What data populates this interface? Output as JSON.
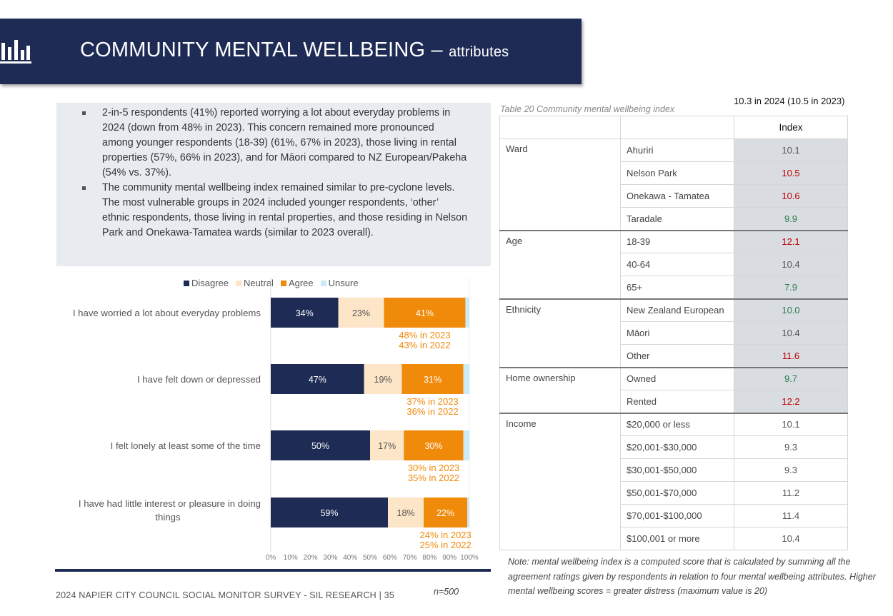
{
  "header": {
    "title": "COMMUNITY MENTAL WELLBEING",
    "dash": "–",
    "subtitle": "attributes",
    "icon": "bar-chart-icon"
  },
  "summary": {
    "bullets": [
      "2-in-5 respondents (41%) reported worrying a lot about everyday problems in 2024 (down from 48% in 2023). This concern remained more pronounced among younger respondents (18-39) (61%, 67% in 2023), those living in rental properties (57%, 66% in 2023), and for Māori compared to NZ European/Pakeha (54% vs. 37%).",
      "The community mental wellbeing index remained similar to pre-cyclone levels. The most vulnerable groups in 2024 included younger respondents, ‘other’ ethnic respondents, those living in rental properties, and those residing in Nelson Park and Onekawa-Tamatea wards (similar to 2023 overall)."
    ]
  },
  "chart_data": {
    "type": "bar",
    "orientation": "horizontal-stacked-100",
    "categories": [
      "I have worried a lot about everyday problems",
      "I have felt down or depressed",
      "I felt lonely at least some of the time",
      "I have had little interest or pleasure in doing things"
    ],
    "series": [
      {
        "name": "Disagree",
        "color": "#1e2b54",
        "values": [
          34,
          47,
          50,
          59
        ],
        "labels": [
          "34%",
          "47%",
          "50%",
          "59%"
        ]
      },
      {
        "name": "Neutral",
        "color": "#fde5c8",
        "values": [
          23,
          19,
          17,
          18
        ],
        "labels": [
          "23%",
          "19%",
          "17%",
          "18%"
        ]
      },
      {
        "name": "Agree",
        "color": "#f08a0a",
        "values": [
          41,
          31,
          30,
          22
        ],
        "labels": [
          "41%",
          "31%",
          "30%",
          "22%"
        ]
      },
      {
        "name": "Unsure",
        "color": "#cdeaf7",
        "values": [
          2,
          3,
          3,
          1
        ],
        "labels": [
          "",
          "",
          "",
          ""
        ]
      }
    ],
    "annotations": [
      [
        "48% in 2023",
        "43% in 2022"
      ],
      [
        "37% in 2023",
        "36% in 2022"
      ],
      [
        "30% in 2023",
        "35% in 2022"
      ],
      [
        "24% in 2023",
        "25% in 2022"
      ]
    ],
    "xticks": [
      "0%",
      "10%",
      "20%",
      "30%",
      "40%",
      "50%",
      "60%",
      "70%",
      "80%",
      "90%",
      "100%"
    ],
    "xlim": [
      0,
      100
    ],
    "legend_position": "top",
    "grid": false,
    "annotation_color": "#f08a0a"
  },
  "table": {
    "caption": "Table 20 Community mental wellbeing index",
    "topnote": "10.3 in 2024 (10.5 in 2023)",
    "column_header": "Index",
    "groups": [
      {
        "name": "Ward",
        "rows": [
          {
            "label": "Ahuriri",
            "value": "10.1",
            "tone": "norm"
          },
          {
            "label": "Nelson Park",
            "value": "10.5",
            "tone": "red"
          },
          {
            "label": "Onekawa - Tamatea",
            "value": "10.6",
            "tone": "red"
          },
          {
            "label": "Taradale",
            "value": "9.9",
            "tone": "green"
          }
        ]
      },
      {
        "name": "Age",
        "rows": [
          {
            "label": "18-39",
            "value": "12.1",
            "tone": "red"
          },
          {
            "label": "40-64",
            "value": "10.4",
            "tone": "norm"
          },
          {
            "label": "65+",
            "value": "7.9",
            "tone": "green"
          }
        ]
      },
      {
        "name": "Ethnicity",
        "rows": [
          {
            "label": "New Zealand European",
            "value": "10.0",
            "tone": "green"
          },
          {
            "label": "Māori",
            "value": "10.4",
            "tone": "norm"
          },
          {
            "label": "Other",
            "value": "11.6",
            "tone": "red"
          }
        ]
      },
      {
        "name": "Home ownership",
        "rows": [
          {
            "label": "Owned",
            "value": "9.7",
            "tone": "green"
          },
          {
            "label": "Rented",
            "value": "12.2",
            "tone": "red"
          }
        ]
      },
      {
        "name": "Income",
        "rows": [
          {
            "label": "$20,000 or less",
            "value": "10.1",
            "tone": "norm"
          },
          {
            "label": "$20,001-$30,000",
            "value": "9.3",
            "tone": "norm"
          },
          {
            "label": "$30,001-$50,000",
            "value": "9.3",
            "tone": "norm"
          },
          {
            "label": "$50,001-$70,000",
            "value": "11.2",
            "tone": "norm"
          },
          {
            "label": "$70,001-$100,000",
            "value": "11.4",
            "tone": "norm"
          },
          {
            "label": "$100,001 or more",
            "value": "10.4",
            "tone": "norm"
          }
        ]
      }
    ],
    "note": "Note: mental wellbeing index is a computed score that is calculated by summing all the agreement ratings given by respondents in relation to four mental wellbeing attributes. Higher mental wellbeing scores = greater distress (maximum value is 20)"
  },
  "footer": {
    "text": "2024 NAPIER CITY COUNCIL SOCIAL MONITOR SURVEY - SIL RESEARCH | 35",
    "n": "n=500"
  }
}
